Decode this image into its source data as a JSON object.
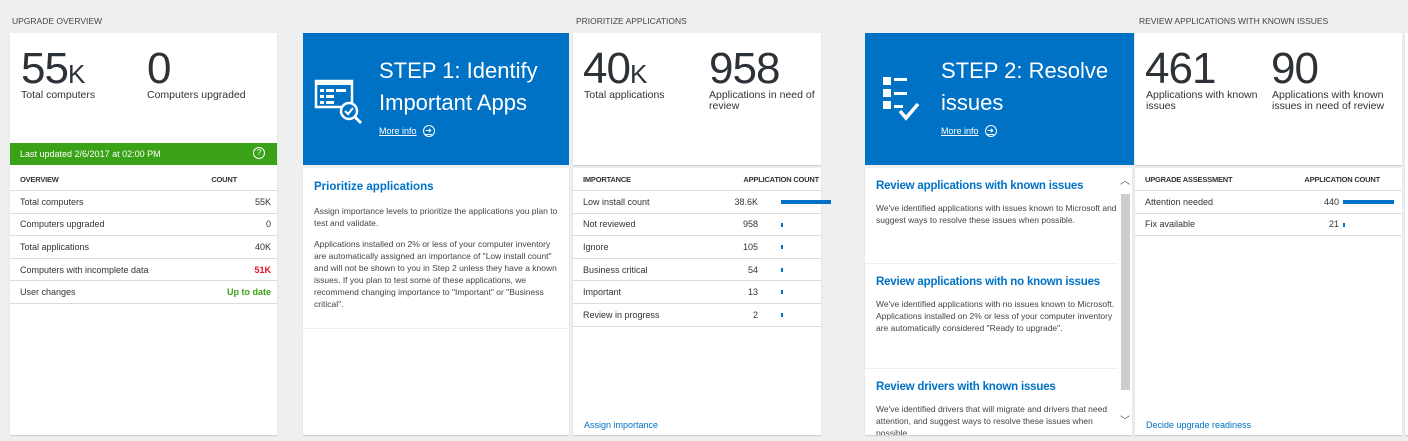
{
  "colors": {
    "accent": "#0072c6",
    "green": "#3aa217",
    "red": "#e81123",
    "up_to_date": "#3aa217"
  },
  "overview": {
    "section_title": "UPGRADE OVERVIEW",
    "stat1": {
      "value": "55",
      "unit": "K",
      "label": "Total computers"
    },
    "stat2": {
      "value": "0",
      "label": "Computers upgraded"
    },
    "status": "Last updated 2/6/2017 at 02:00 PM",
    "help_icon": "question-circle-icon",
    "table": {
      "headers": [
        "OVERVIEW",
        "COUNT"
      ],
      "rows": [
        {
          "label": "Total computers",
          "value": "55K"
        },
        {
          "label": "Computers upgraded",
          "value": "0"
        },
        {
          "label": "Total applications",
          "value": "40K"
        },
        {
          "label": "Computers with incomplete data",
          "value": "51K"
        },
        {
          "label": "User changes",
          "value": "Up to date"
        }
      ]
    }
  },
  "step1": {
    "title": "STEP 1: Identify Important Apps",
    "more_info": "More info",
    "icon": "app-list-search-check-icon",
    "detail": {
      "heading": "Prioritize applications",
      "p1": "Assign importance levels to prioritize the applications you plan to test and validate.",
      "p2": "Applications installed on 2% or less of your computer inventory are automatically assigned an importance of \"Low install count\" and will not be shown to you in Step 2 unless they have a known issues. If you plan to test some of these applications, we recommend changing importance to \"Important\" or \"Business critical\"."
    }
  },
  "prioritize": {
    "section_title": "PRIORITIZE APPLICATIONS",
    "stat1": {
      "value": "40",
      "unit": "K",
      "label": "Total applications"
    },
    "stat2": {
      "value": "958",
      "label": "Applications in need of review"
    },
    "table": {
      "headers": [
        "IMPORTANCE",
        "APPLICATION COUNT"
      ],
      "rows": [
        {
          "label": "Low install count",
          "value": "38.6K",
          "count": 38600
        },
        {
          "label": "Not reviewed",
          "value": "958",
          "count": 958
        },
        {
          "label": "Ignore",
          "value": "105",
          "count": 105
        },
        {
          "label": "Business critical",
          "value": "54",
          "count": 54
        },
        {
          "label": "Important",
          "value": "13",
          "count": 13
        },
        {
          "label": "Review in progress",
          "value": "2",
          "count": 2
        }
      ]
    },
    "link": "Assign importance"
  },
  "step2": {
    "title": "STEP 2: Resolve issues",
    "more_info": "More info",
    "icon": "checklist-icon",
    "items": [
      {
        "heading": "Review applications with known issues",
        "text": "We've identified applications with issues known to Microsoft and suggest ways to resolve these issues when possible."
      },
      {
        "heading": "Review applications with no known issues",
        "text": "We've identified applications with no issues known to Microsoft. Applications installed on 2% or less of your computer inventory are automatically considered \"Ready to upgrade\"."
      },
      {
        "heading": "Review drivers with known issues",
        "text": "We've identified drivers that will migrate and drivers that need attention, and suggest ways to resolve these issues when possible."
      }
    ]
  },
  "known": {
    "section_title": "REVIEW APPLICATIONS WITH KNOWN ISSUES",
    "stat1": {
      "value": "461",
      "label": "Applications with known issues"
    },
    "stat2": {
      "value": "90",
      "label": "Applications with known issues in need of review"
    },
    "table": {
      "headers": [
        "UPGRADE ASSESSMENT",
        "APPLICATION COUNT"
      ],
      "rows": [
        {
          "label": "Attention needed",
          "value": "440",
          "count": 440
        },
        {
          "label": "Fix available",
          "value": "21",
          "count": 21
        }
      ]
    },
    "link": "Decide upgrade readiness"
  }
}
